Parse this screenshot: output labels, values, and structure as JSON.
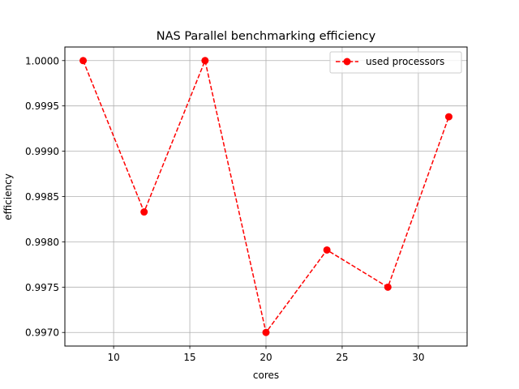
{
  "chart_data": {
    "type": "line",
    "title": "NAS Parallel benchmarking efficiency",
    "xlabel": "cores",
    "ylabel": "efficiency",
    "xlim": [
      6.8,
      33.2
    ],
    "ylim": [
      0.99685,
      1.00015
    ],
    "xticks": [
      10,
      15,
      20,
      25,
      30
    ],
    "xtick_labels": [
      "10",
      "15",
      "20",
      "25",
      "30"
    ],
    "yticks": [
      0.997,
      0.9975,
      0.998,
      0.9985,
      0.999,
      0.9995,
      1.0
    ],
    "ytick_labels": [
      "0.9970",
      "0.9975",
      "0.9980",
      "0.9985",
      "0.9990",
      "0.9995",
      "1.0000"
    ],
    "grid": true,
    "legend_position": "top-right",
    "series": [
      {
        "name": "used processors",
        "color": "#ff0000",
        "line_style": "dashed",
        "marker": "circle",
        "x": [
          8,
          12,
          16,
          20,
          24,
          28,
          32
        ],
        "y": [
          1.0,
          0.99833,
          1.0,
          0.997,
          0.99791,
          0.9975,
          0.99938
        ]
      }
    ]
  }
}
